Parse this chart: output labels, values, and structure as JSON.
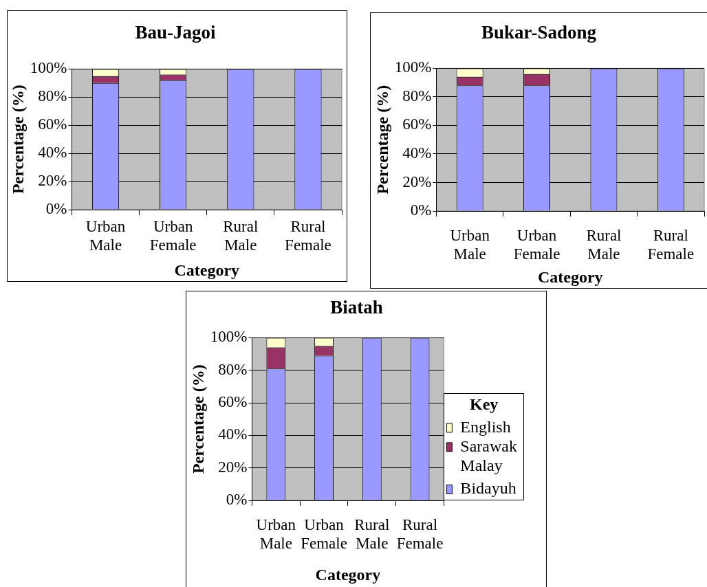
{
  "chart_data": [
    {
      "type": "bar",
      "title": "Bau-Jagoi",
      "xlabel": "Category",
      "ylabel": "Percentage (%)",
      "categories": [
        "Urban Male",
        "Urban Female",
        "Rural Male",
        "Rural Female"
      ],
      "series": [
        {
          "color": "#9999ff",
          "values": [
            90,
            92,
            100,
            100
          ]
        },
        {
          "color": "#993366",
          "values": [
            5,
            4,
            0,
            0
          ]
        },
        {
          "color": "#ffffcc",
          "values": [
            5,
            4,
            0,
            0
          ]
        }
      ],
      "stacked": true,
      "ylim": [
        0,
        100
      ],
      "yticks": [
        {
          "value": 0,
          "label": "0%"
        },
        {
          "value": 20,
          "label": "20%"
        },
        {
          "value": 40,
          "label": "40%"
        },
        {
          "value": 60,
          "label": "60%"
        },
        {
          "value": 80,
          "label": "80%"
        },
        {
          "value": 100,
          "label": "100%"
        }
      ],
      "grid": "y"
    },
    {
      "type": "bar",
      "title": "Bukar-Sadong",
      "xlabel": "Category",
      "ylabel": "Percentage (%)",
      "categories": [
        "Urban Male",
        "Urban Female",
        "Rural Male",
        "Rural Female"
      ],
      "series": [
        {
          "color": "#9999ff",
          "values": [
            88,
            88,
            100,
            100
          ]
        },
        {
          "color": "#993366",
          "values": [
            6,
            8,
            0,
            0
          ]
        },
        {
          "color": "#ffffcc",
          "values": [
            6,
            4,
            0,
            0
          ]
        }
      ],
      "stacked": true,
      "ylim": [
        0,
        100
      ],
      "yticks": [
        {
          "value": 0,
          "label": "0%"
        },
        {
          "value": 20,
          "label": "20%"
        },
        {
          "value": 40,
          "label": "40%"
        },
        {
          "value": 60,
          "label": "60%"
        },
        {
          "value": 80,
          "label": "80%"
        },
        {
          "value": 100,
          "label": "100%"
        }
      ],
      "grid": "y"
    },
    {
      "type": "bar",
      "title": "Biatah",
      "xlabel": "Category",
      "ylabel": "Percentage (%)",
      "categories": [
        "Urban Male",
        "Urban Female",
        "Rural Male",
        "Rural Female"
      ],
      "series": [
        {
          "name": "Bidayuh",
          "color": "#9999ff",
          "values": [
            81,
            89,
            100,
            100
          ]
        },
        {
          "name": "Sarawak Malay",
          "color": "#993366",
          "values": [
            13,
            6,
            0,
            0
          ]
        },
        {
          "name": "English",
          "color": "#ffffcc",
          "values": [
            6,
            5,
            0,
            0
          ]
        }
      ],
      "stacked": true,
      "ylim": [
        0,
        100
      ],
      "yticks": [
        {
          "value": 0,
          "label": "0%"
        },
        {
          "value": 20,
          "label": "20%"
        },
        {
          "value": 40,
          "label": "40%"
        },
        {
          "value": 60,
          "label": "60%"
        },
        {
          "value": 80,
          "label": "80%"
        },
        {
          "value": 100,
          "label": "100%"
        }
      ],
      "grid": "y",
      "legend": "right",
      "legend_title": "Key"
    }
  ]
}
